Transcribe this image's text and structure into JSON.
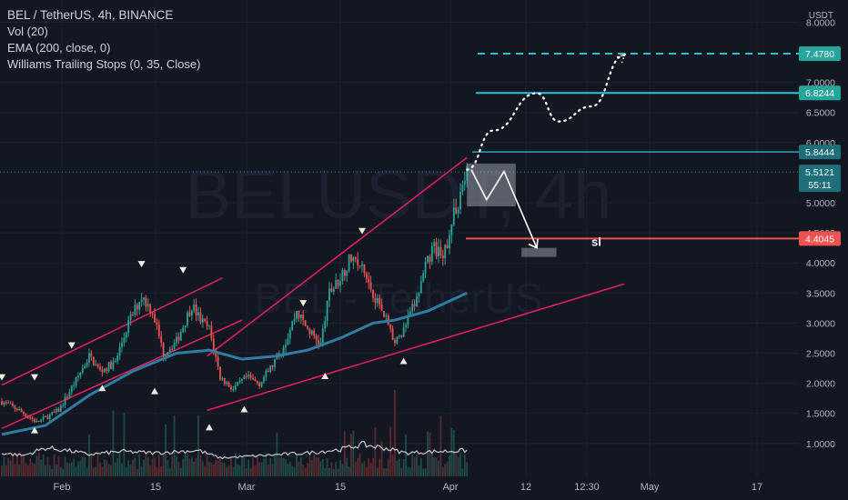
{
  "header": {
    "symbol_line": "BEL / TetherUS, 4h, BINANCE",
    "indicators": [
      "Vol (20)",
      "EMA (200, close, 0)",
      "Williams Trailing Stops (0, 35, Close)"
    ]
  },
  "watermark": {
    "line1": "BELUSDT, 4h",
    "line2": "BEL - TetherUS"
  },
  "colors": {
    "background": "#131722",
    "grid": "#1e222d",
    "up": "#26a69a",
    "down": "#ef5350",
    "channel": "#e91e63",
    "ema": "#2f7da0",
    "tp": "#26c6da",
    "sl": "#ef5350",
    "text": "#b2b5be"
  },
  "chart_data": {
    "type": "candlestick",
    "symbol": "BELUSDT",
    "timeframe": "4h",
    "exchange": "BINANCE",
    "y_unit": "USDT",
    "ylim": [
      0.8,
      8.0
    ],
    "x_ticks": [
      "Feb",
      "15",
      "Mar",
      "15",
      "Apr",
      "12",
      "12:30",
      "May",
      "17"
    ],
    "y_ticks": [
      "8.0000",
      "7.0000",
      "6.5000",
      "6.0000",
      "5.0000",
      "4.5000",
      "4.0000",
      "3.5000",
      "3.0000",
      "2.5000",
      "2.0000",
      "1.5000",
      "1.0000"
    ],
    "current_price": "5.5121",
    "countdown": "55:11",
    "price_levels": [
      {
        "label": "7.4780",
        "value": 7.478,
        "style": "dashed",
        "color": "#26c6da",
        "role": "target-2"
      },
      {
        "label": "6.8244",
        "value": 6.8244,
        "style": "solid",
        "color": "#26c6da",
        "role": "target-1"
      },
      {
        "label": "5.8444",
        "value": 5.8444,
        "style": "solid",
        "color": "#26c6da",
        "role": "resistance"
      },
      {
        "label": "4.4045",
        "value": 4.4045,
        "style": "solid",
        "color": "#ef5350",
        "role": "stop-loss"
      }
    ],
    "annotations": [
      {
        "text": "sl"
      }
    ],
    "price_path": [
      [
        0,
        1.7
      ],
      [
        8,
        1.55
      ],
      [
        16,
        1.35
      ],
      [
        26,
        1.55
      ],
      [
        34,
        2.05
      ],
      [
        40,
        2.45
      ],
      [
        45,
        2.2
      ],
      [
        52,
        2.35
      ],
      [
        58,
        3.0
      ],
      [
        64,
        3.45
      ],
      [
        69,
        3.2
      ],
      [
        74,
        2.5
      ],
      [
        80,
        2.7
      ],
      [
        87,
        3.3
      ],
      [
        91,
        3.05
      ],
      [
        95,
        2.9
      ],
      [
        100,
        2.1
      ],
      [
        106,
        1.9
      ],
      [
        112,
        2.1
      ],
      [
        118,
        2.0
      ],
      [
        124,
        2.3
      ],
      [
        130,
        2.7
      ],
      [
        135,
        3.2
      ],
      [
        140,
        2.9
      ],
      [
        146,
        2.65
      ],
      [
        150,
        3.5
      ],
      [
        154,
        3.7
      ],
      [
        160,
        4.1
      ],
      [
        165,
        3.9
      ],
      [
        170,
        3.5
      ],
      [
        176,
        3.1
      ],
      [
        180,
        2.65
      ],
      [
        184,
        2.9
      ],
      [
        190,
        3.4
      ],
      [
        194,
        3.9
      ],
      [
        198,
        4.3
      ],
      [
        202,
        4.0
      ],
      [
        205,
        4.55
      ],
      [
        208,
        4.9
      ],
      [
        211,
        5.3
      ],
      [
        213,
        5.51
      ]
    ],
    "ema_path": [
      [
        0,
        1.15
      ],
      [
        20,
        1.3
      ],
      [
        40,
        1.8
      ],
      [
        60,
        2.2
      ],
      [
        80,
        2.5
      ],
      [
        95,
        2.55
      ],
      [
        110,
        2.4
      ],
      [
        125,
        2.45
      ],
      [
        140,
        2.55
      ],
      [
        155,
        2.75
      ],
      [
        170,
        3.0
      ],
      [
        180,
        3.05
      ],
      [
        195,
        3.2
      ],
      [
        213,
        3.5
      ]
    ],
    "volume_path": [
      [
        0,
        0.25
      ],
      [
        10,
        0.2
      ],
      [
        20,
        0.35
      ],
      [
        30,
        0.3
      ],
      [
        40,
        0.22
      ],
      [
        55,
        0.28
      ],
      [
        70,
        0.25
      ],
      [
        90,
        0.3
      ],
      [
        100,
        0.15
      ],
      [
        120,
        0.2
      ],
      [
        140,
        0.25
      ],
      [
        155,
        0.32
      ],
      [
        165,
        0.42
      ],
      [
        175,
        0.35
      ],
      [
        185,
        0.25
      ],
      [
        200,
        0.28
      ],
      [
        213,
        0.3
      ]
    ],
    "channel_lines": [
      {
        "from": [
          0,
          1.97
        ],
        "to": [
          101,
          3.75
        ]
      },
      {
        "from": [
          0,
          1.25
        ],
        "to": [
          110,
          3.05
        ]
      },
      {
        "from": [
          94,
          2.45
        ],
        "to": [
          213,
          5.75
        ]
      },
      {
        "from": [
          94,
          1.55
        ],
        "to": [
          285,
          3.65
        ]
      }
    ],
    "projection_path": [
      [
        213,
        5.55
      ],
      [
        225,
        6.2
      ],
      [
        245,
        6.82
      ],
      [
        255,
        6.35
      ],
      [
        270,
        6.6
      ],
      [
        285,
        7.45
      ]
    ],
    "scenario_path": [
      [
        215,
        5.55
      ],
      [
        222,
        5.05
      ],
      [
        230,
        5.52
      ],
      [
        245,
        4.25
      ]
    ],
    "scenario_box": {
      "from": [
        213,
        5.0
      ],
      "to": [
        232,
        5.5
      ]
    },
    "sl_box": {
      "from": [
        238,
        4.1
      ],
      "to": [
        254,
        4.25
      ]
    },
    "signals_down": [
      [
        0,
        1.97
      ],
      [
        15,
        1.97
      ],
      [
        32,
        2.5
      ],
      [
        64,
        3.85
      ],
      [
        83,
        3.75
      ],
      [
        138,
        3.2
      ],
      [
        165,
        4.4
      ]
    ],
    "signals_up": [
      [
        15,
        1.35
      ],
      [
        46,
        2.05
      ],
      [
        70,
        2.0
      ],
      [
        95,
        1.4
      ],
      [
        111,
        1.7
      ],
      [
        148,
        2.25
      ],
      [
        184,
        2.5
      ]
    ]
  }
}
